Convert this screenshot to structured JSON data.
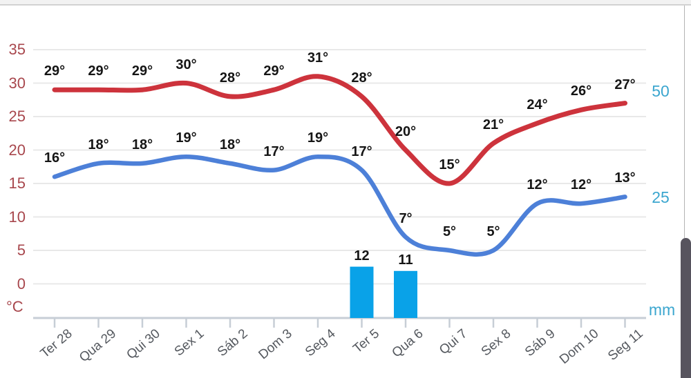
{
  "chart_data": {
    "type": "combo-line-bar",
    "title": "",
    "categories": [
      "Ter 28",
      "Qua 29",
      "Qui 30",
      "Sex 1",
      "Sáb 2",
      "Dom 3",
      "Seg 4",
      "Ter 5",
      "Qua 6",
      "Qui 7",
      "Sex 8",
      "Sáb 9",
      "Dom 10",
      "Seg 11"
    ],
    "series": [
      {
        "name": "max-temperature",
        "type": "line",
        "color": "#cd333c",
        "values": [
          29,
          29,
          29,
          30,
          28,
          29,
          31,
          28,
          20,
          15,
          21,
          24,
          26,
          27
        ],
        "labels": [
          "29°",
          "29°",
          "29°",
          "30°",
          "28°",
          "29°",
          "31°",
          "28°",
          "20°",
          "15°",
          "21°",
          "24°",
          "26°",
          "27°"
        ]
      },
      {
        "name": "min-temperature",
        "type": "line",
        "color": "#4d80d8",
        "values": [
          16,
          18,
          18,
          19,
          18,
          17,
          19,
          17,
          7,
          5,
          5,
          12,
          12,
          13
        ],
        "labels": [
          "16°",
          "18°",
          "18°",
          "19°",
          "18°",
          "17°",
          "19°",
          "17°",
          "7°",
          "5°",
          "5°",
          "12°",
          "12°",
          "13°"
        ]
      },
      {
        "name": "precipitation",
        "type": "bar",
        "color": "#09a2e8",
        "values": [
          0,
          0,
          0,
          0,
          0,
          0,
          0,
          12,
          11,
          0,
          0,
          0,
          0,
          0
        ],
        "labels": [
          "",
          "",
          "",
          "",
          "",
          "",
          "",
          "12",
          "11",
          "",
          "",
          "",
          "",
          ""
        ]
      }
    ],
    "left_axis": {
      "unit": "°C",
      "color": "#a8474d",
      "ticks": [
        "35",
        "30",
        "25",
        "20",
        "15",
        "10",
        "5",
        "0"
      ],
      "tick_values": [
        35,
        30,
        25,
        20,
        15,
        10,
        5,
        0
      ],
      "range": [
        0,
        35
      ]
    },
    "right_axis": {
      "unit": "mm",
      "color": "#3ba6cf",
      "ticks": [
        "50",
        "25"
      ],
      "tick_values": [
        50,
        25
      ]
    },
    "grid": true,
    "legend": "none"
  }
}
